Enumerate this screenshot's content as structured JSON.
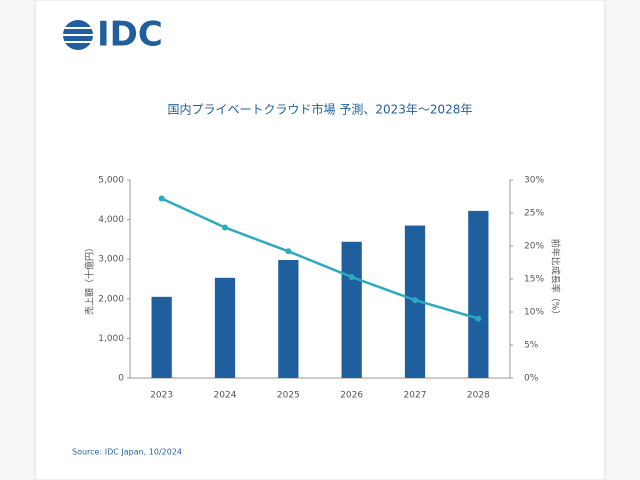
{
  "logo": "IDC",
  "chart_data": {
    "type": "bar",
    "title": "国内プライベートクラウド市場 予測、2023年～2028年",
    "y_label": "売上額（十億円）",
    "y2_label": "前年比成長率（%）",
    "source": "Source: IDC Japan, 10/2024",
    "categories": [
      "2023",
      "2024",
      "2025",
      "2026",
      "2027",
      "2028"
    ],
    "series": [
      {
        "type": "bar",
        "color": "#1f5f9e",
        "values": [
          2050,
          2530,
          2980,
          3440,
          3850,
          4220
        ]
      },
      {
        "type": "line",
        "axis": "y2",
        "color": "#2aa9c0",
        "values": [
          27.2,
          22.8,
          19.2,
          15.3,
          11.8,
          9.0
        ]
      }
    ],
    "ylim": [
      0,
      5000
    ],
    "yticks": [
      {
        "value": 0,
        "label": "0"
      },
      {
        "value": 1000,
        "label": "1,000"
      },
      {
        "value": 2000,
        "label": "2,000"
      },
      {
        "value": 3000,
        "label": "3,000"
      },
      {
        "value": 4000,
        "label": "4,000"
      },
      {
        "value": 5000,
        "label": "5,000"
      }
    ],
    "y2lim": [
      0,
      30
    ],
    "y2ticks": [
      {
        "value": 0,
        "label": "0%"
      },
      {
        "value": 5,
        "label": "5%"
      },
      {
        "value": 10,
        "label": "10%"
      },
      {
        "value": 15,
        "label": "15%"
      },
      {
        "value": 20,
        "label": "20%"
      },
      {
        "value": 25,
        "label": "25%"
      },
      {
        "value": 30,
        "label": "30%"
      }
    ]
  }
}
